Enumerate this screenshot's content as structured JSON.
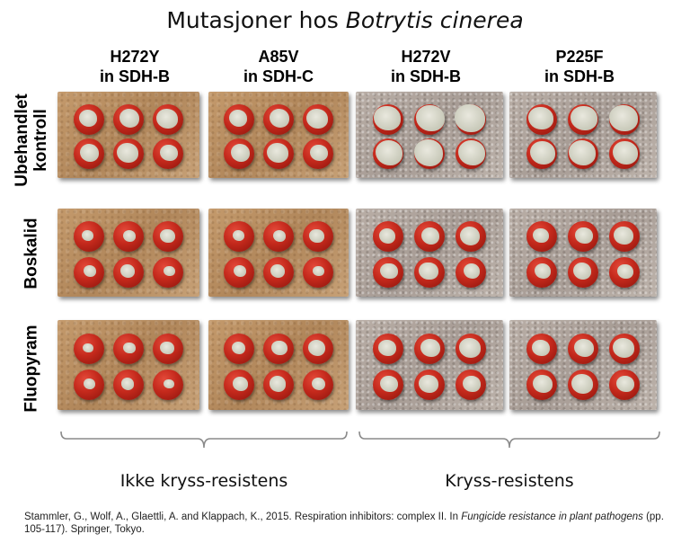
{
  "title": {
    "prefix": "Mutasjoner hos ",
    "species": "Botrytis cinerea"
  },
  "columns": [
    {
      "mutation": "H272Y",
      "subunit": "in SDH-B"
    },
    {
      "mutation": "A85V",
      "subunit": "in SDH-C"
    },
    {
      "mutation": "H272V",
      "subunit": "in SDH-B"
    },
    {
      "mutation": "P225F",
      "subunit": "in SDH-B"
    }
  ],
  "rows": [
    {
      "line1": "Ubehandlet",
      "line2": "kontroll"
    },
    {
      "line1": "Boskalid",
      "line2": ""
    },
    {
      "line1": "Fluopyram",
      "line2": ""
    }
  ],
  "groups": [
    {
      "label": "Ikke kryss-resistens"
    },
    {
      "label": "Kryss-resistens"
    }
  ],
  "citation": {
    "part1": "Stammler, G., Wolf, A., Glaettli, A. and Klappach, K., 2015. Respiration inhibitors: complex II. In ",
    "book": "Fungicide resistance in plant pathogens",
    "part2": " (pp. 105-117). Springer, Tokyo."
  },
  "colors": {
    "panel_untreated_tone": "#b99069",
    "panel_resistant_tone": "#aea39c",
    "tomato": "#c4291c",
    "mold": "#d6d6c8"
  },
  "panel_infection": [
    [
      0.5,
      0.5,
      1.0,
      0.9
    ],
    [
      0.1,
      0.1,
      0.4,
      0.35
    ],
    [
      0.05,
      0.25,
      0.45,
      0.5
    ]
  ]
}
